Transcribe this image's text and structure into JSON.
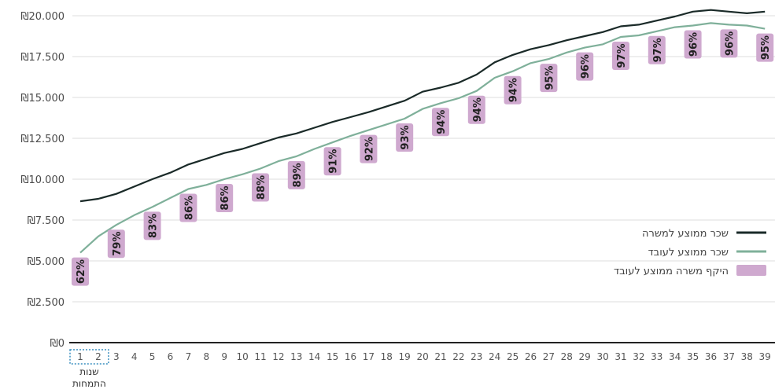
{
  "chart_data": {
    "type": "line",
    "currency": "₪",
    "y_ticks": [
      "₪20.000",
      "₪17.500",
      "₪15.000",
      "₪12.500",
      "₪10.000",
      "₪7.500",
      "₪5.000",
      "₪2.500",
      "₪0"
    ],
    "ylim": [
      0,
      20000
    ],
    "x": [
      1,
      2,
      3,
      4,
      5,
      6,
      7,
      8,
      9,
      10,
      11,
      12,
      13,
      14,
      15,
      16,
      17,
      18,
      19,
      20,
      21,
      22,
      23,
      24,
      25,
      26,
      27,
      28,
      29,
      30,
      31,
      32,
      33,
      34,
      35,
      36,
      37,
      38,
      39
    ],
    "x_tick_labels": [
      "1",
      "2",
      "3",
      "4",
      "5",
      "6",
      "7",
      "8",
      "9",
      "10",
      "11",
      "12",
      "13",
      "14",
      "15",
      "16",
      "17",
      "18",
      "19",
      "20",
      "21",
      "22",
      "23",
      "24",
      "25",
      "26",
      "27",
      "28",
      "29",
      "30",
      "31",
      "32",
      "33",
      "34",
      "35",
      "36",
      "37",
      "38",
      "39"
    ],
    "x_note": {
      "line1": "שנות",
      "line2": "התמחות",
      "span": [
        1,
        2
      ]
    },
    "series": [
      {
        "name": "שכר ממוצע למשרה",
        "color": "#1a2a28",
        "values": [
          8650,
          8800,
          9100,
          9550,
          10000,
          10400,
          10900,
          11250,
          11600,
          11850,
          12200,
          12550,
          12800,
          13150,
          13500,
          13800,
          14100,
          14450,
          14800,
          15350,
          15600,
          15900,
          16400,
          17150,
          17600,
          17950,
          18200,
          18500,
          18750,
          19000,
          19350,
          19450,
          19700,
          19950,
          20250,
          20350,
          20250,
          20150,
          20250
        ]
      },
      {
        "name": "שכר ממוצע לעובד",
        "color": "#7fb09a",
        "values": [
          5500,
          6500,
          7200,
          7800,
          8300,
          8850,
          9400,
          9650,
          10000,
          10300,
          10650,
          11100,
          11400,
          11850,
          12250,
          12650,
          13000,
          13350,
          13700,
          14300,
          14650,
          14950,
          15400,
          16200,
          16600,
          17100,
          17350,
          17750,
          18050,
          18250,
          18700,
          18800,
          19050,
          19300,
          19400,
          19550,
          19450,
          19400,
          19200
        ]
      },
      {
        "name": "היקף משרה ממוצע לעובד",
        "color": "#cfa9cf",
        "values": [
          62,
          79,
          83,
          86,
          86,
          88,
          89,
          91,
          92,
          93,
          94,
          94,
          94,
          95,
          96,
          97,
          97,
          96,
          96,
          95
        ],
        "x": [
          1,
          3,
          5,
          7,
          9,
          11,
          13,
          15,
          17,
          19,
          21,
          23,
          25,
          27,
          29,
          31,
          33,
          35,
          37,
          39
        ],
        "labels": [
          "62%",
          "79%",
          "83%",
          "86%",
          "86%",
          "88%",
          "89%",
          "91%",
          "92%",
          "93%",
          "94%",
          "94%",
          "94%",
          "95%",
          "96%",
          "97%",
          "97%",
          "96%",
          "96%",
          "95%"
        ]
      }
    ],
    "legend": [
      {
        "label": "שכר ממוצע למשרה",
        "color": "#1a2a28",
        "shape": "line"
      },
      {
        "label": "שכר ממוצע לעובד",
        "color": "#7fb09a",
        "shape": "line"
      },
      {
        "label": "היקף משרה ממוצע לעובד",
        "color": "#cfa9cf",
        "shape": "box"
      }
    ],
    "legend_placement": "right-middle",
    "grid": "horizontal"
  }
}
